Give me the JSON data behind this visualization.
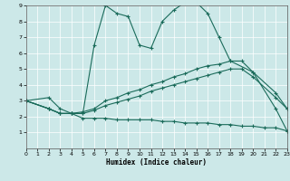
{
  "xlabel": "Humidex (Indice chaleur)",
  "xlim": [
    0,
    23
  ],
  "ylim": [
    0,
    9
  ],
  "xticks": [
    0,
    1,
    2,
    3,
    4,
    5,
    6,
    7,
    8,
    9,
    10,
    11,
    12,
    13,
    14,
    15,
    16,
    17,
    18,
    19,
    20,
    21,
    22,
    23
  ],
  "yticks": [
    1,
    2,
    3,
    4,
    5,
    6,
    7,
    8,
    9
  ],
  "bg_color": "#cce8e8",
  "line_color": "#1a6b5a",
  "grid_color": "#ffffff",
  "series": [
    {
      "x": [
        0,
        2,
        3,
        4,
        5,
        6,
        7,
        8,
        9,
        10,
        11,
        12,
        13,
        14,
        15,
        16,
        17,
        18,
        20,
        22,
        23
      ],
      "y": [
        3.0,
        3.2,
        2.5,
        2.2,
        2.2,
        6.5,
        9.0,
        8.5,
        8.3,
        6.5,
        6.3,
        8.0,
        8.7,
        9.2,
        9.2,
        8.5,
        7.0,
        5.5,
        4.8,
        2.5,
        1.1
      ]
    },
    {
      "x": [
        0,
        2,
        3,
        4,
        5,
        6,
        7,
        8,
        9,
        10,
        11,
        12,
        13,
        14,
        15,
        16,
        17,
        18,
        19,
        20,
        22,
        23
      ],
      "y": [
        3.0,
        2.5,
        2.2,
        2.2,
        2.3,
        2.5,
        3.0,
        3.2,
        3.5,
        3.7,
        4.0,
        4.2,
        4.5,
        4.7,
        5.0,
        5.2,
        5.3,
        5.5,
        5.5,
        4.8,
        3.5,
        2.5
      ]
    },
    {
      "x": [
        0,
        2,
        3,
        4,
        5,
        6,
        7,
        8,
        9,
        10,
        11,
        12,
        13,
        14,
        15,
        16,
        17,
        18,
        19,
        20,
        22,
        23
      ],
      "y": [
        3.0,
        2.5,
        2.2,
        2.2,
        2.2,
        2.4,
        2.7,
        2.9,
        3.1,
        3.3,
        3.6,
        3.8,
        4.0,
        4.2,
        4.4,
        4.6,
        4.8,
        5.0,
        5.0,
        4.5,
        3.2,
        2.5
      ]
    },
    {
      "x": [
        0,
        2,
        3,
        4,
        5,
        6,
        7,
        8,
        9,
        10,
        11,
        12,
        13,
        14,
        15,
        16,
        17,
        18,
        19,
        20,
        21,
        22,
        23
      ],
      "y": [
        3.0,
        2.5,
        2.2,
        2.2,
        1.9,
        1.9,
        1.9,
        1.8,
        1.8,
        1.8,
        1.8,
        1.7,
        1.7,
        1.6,
        1.6,
        1.6,
        1.5,
        1.5,
        1.4,
        1.4,
        1.3,
        1.3,
        1.1
      ]
    }
  ]
}
